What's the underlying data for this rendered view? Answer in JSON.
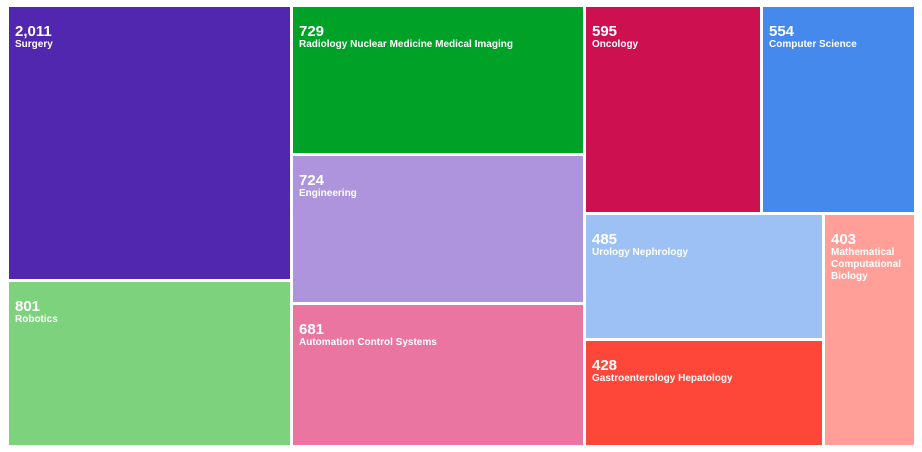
{
  "chart_data": {
    "type": "treemap",
    "title": "",
    "items": [
      {
        "label": "Surgery",
        "value": 2011,
        "value_label": "2,011",
        "color": "#5127b0"
      },
      {
        "label": "Robotics",
        "value": 801,
        "value_label": "801",
        "color": "#7dd27d"
      },
      {
        "label": "Radiology Nuclear Medicine Medical Imaging",
        "value": 729,
        "value_label": "729",
        "color": "#00a127"
      },
      {
        "label": "Engineering",
        "value": 724,
        "value_label": "724",
        "color": "#ad94dc"
      },
      {
        "label": "Automation Control Systems",
        "value": 681,
        "value_label": "681",
        "color": "#ea75a1"
      },
      {
        "label": "Oncology",
        "value": 595,
        "value_label": "595",
        "color": "#cd1150"
      },
      {
        "label": "Computer Science",
        "value": 554,
        "value_label": "554",
        "color": "#4689ed"
      },
      {
        "label": "Urology Nephrology",
        "value": 485,
        "value_label": "485",
        "color": "#9dc1f5"
      },
      {
        "label": "Gastroenterology Hepatology",
        "value": 428,
        "value_label": "428",
        "color": "#ff4739"
      },
      {
        "label": "Mathematical Computational Biology",
        "value": 403,
        "value_label": "403",
        "color": "#ff9f98"
      }
    ]
  }
}
